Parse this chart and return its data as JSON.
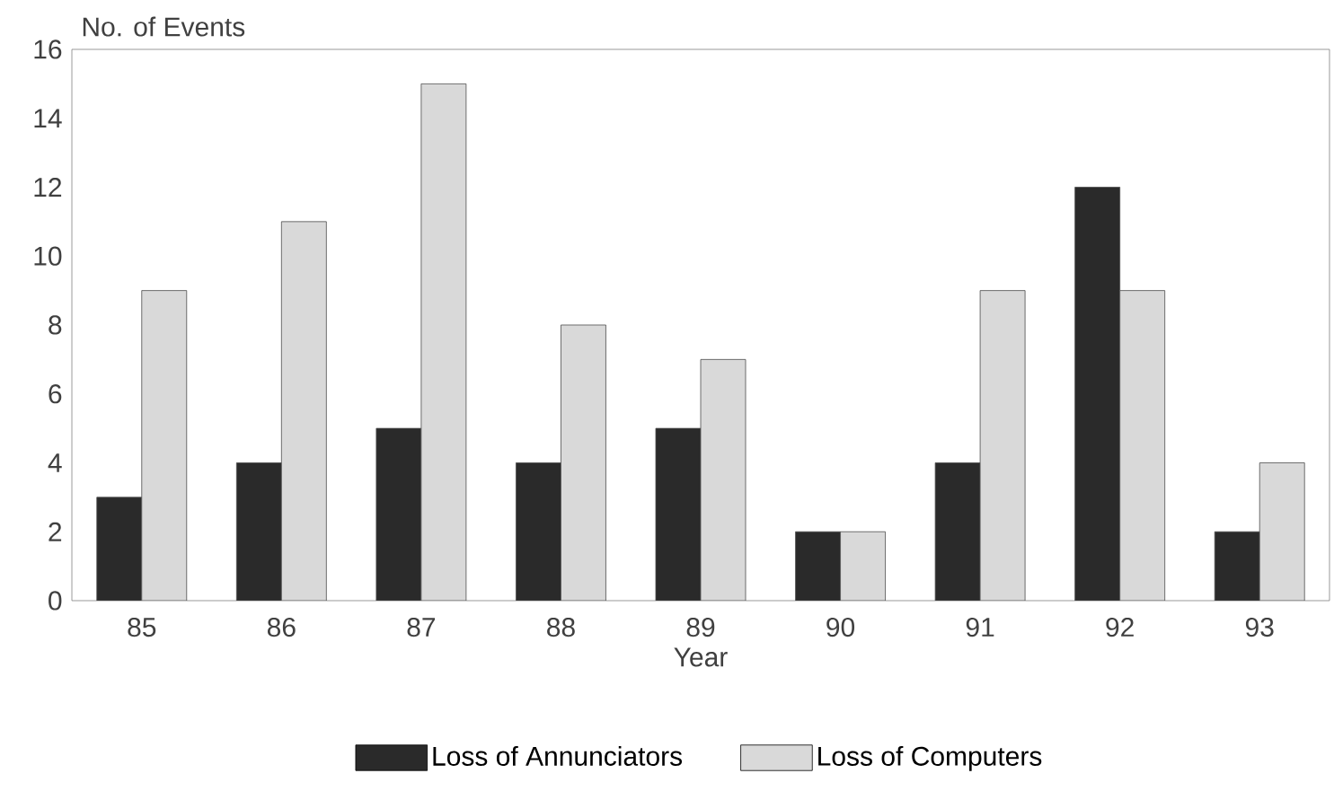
{
  "chart_data": {
    "type": "bar",
    "xlabel": "Year",
    "ylabel": "No. of Events",
    "categories": [
      "85",
      "86",
      "87",
      "88",
      "89",
      "90",
      "91",
      "92",
      "93"
    ],
    "series": [
      {
        "name": "Loss of Annunciators",
        "color": "#2a2a2a",
        "values": [
          3,
          4,
          5,
          4,
          5,
          2,
          4,
          12,
          2
        ]
      },
      {
        "name": "Loss of Computers",
        "color": "#d9d9d9",
        "values": [
          9,
          11,
          15,
          8,
          7,
          2,
          9,
          9,
          4
        ]
      }
    ],
    "ylim": [
      0,
      16
    ],
    "yticks": [
      0,
      2,
      4,
      6,
      8,
      10,
      12,
      14,
      16
    ],
    "grid": false,
    "legend": "bottom"
  }
}
